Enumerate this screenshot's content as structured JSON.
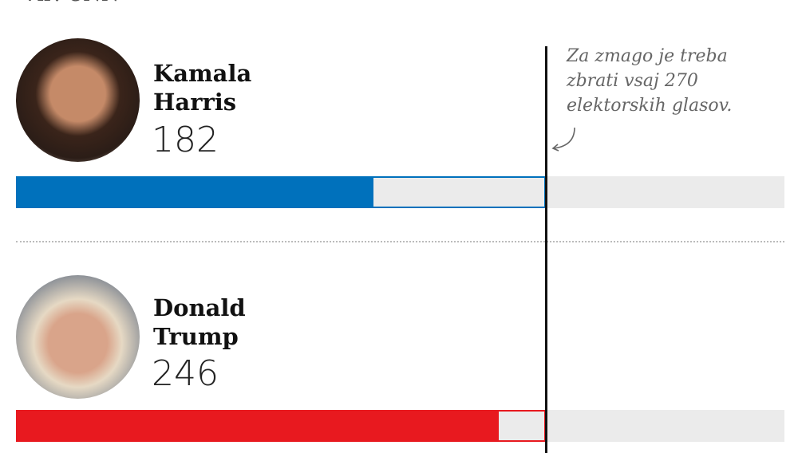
{
  "source": "Vir: CNN",
  "chart_data": {
    "type": "bar",
    "orientation": "horizontal",
    "categories": [
      "Kamala Harris",
      "Donald Trump"
    ],
    "values": [
      182,
      246
    ],
    "threshold": 270,
    "annotation": "Za zmago je treba zbrati vsaj 270 elektorskih glasov.",
    "colors": [
      "#0071bc",
      "#e8191f"
    ],
    "track_color": "#ebebeb"
  },
  "candidates": [
    {
      "first": "Kamala",
      "last": "Harris",
      "votes": "182"
    },
    {
      "first": "Donald",
      "last": "Trump",
      "votes": "246"
    }
  ],
  "annotation_lines": [
    "Za zmago je treba",
    "zbrati vsaj 270",
    "elektorskih glasov."
  ]
}
